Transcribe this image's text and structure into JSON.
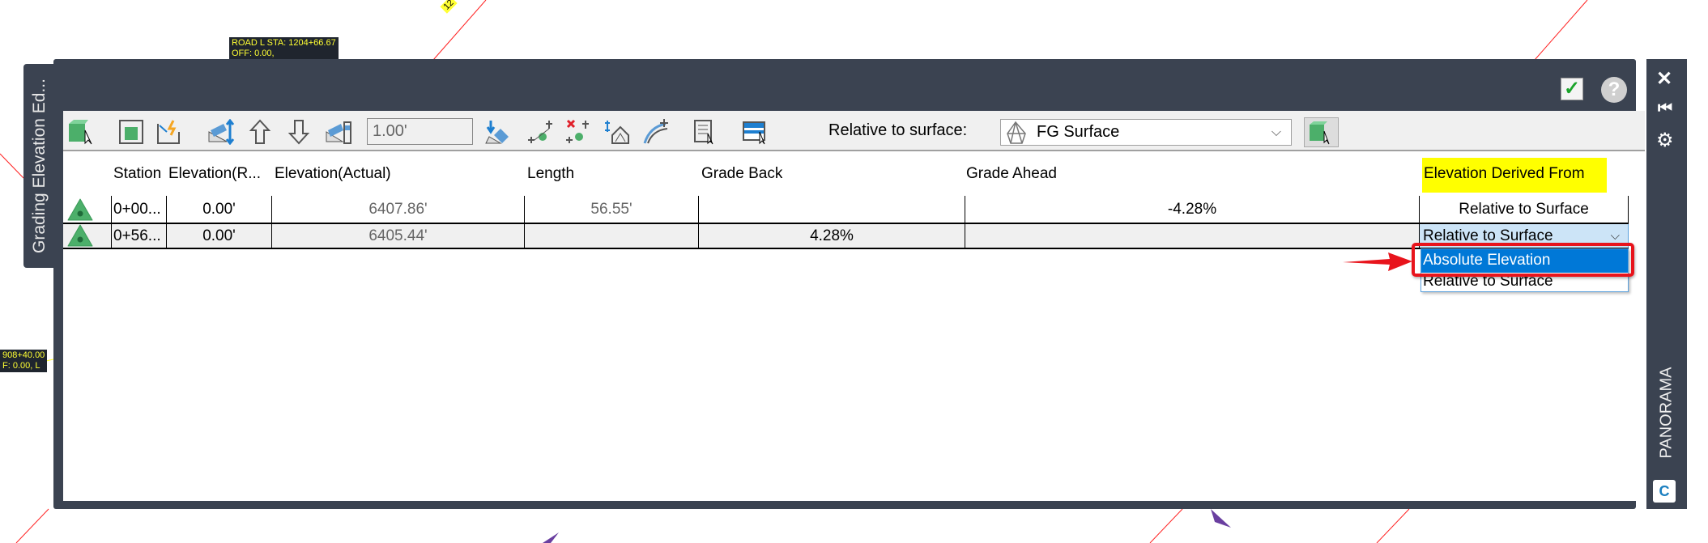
{
  "canvas": {
    "label_top": [
      "ROAD L STA: 1204+66.67",
      "OFF: 0.00,"
    ],
    "label_left": [
      "908+40.00",
      "F: 0.00, L"
    ],
    "label_rotated": "12"
  },
  "panel": {
    "title": "Grading Elevation Ed...",
    "side_title": "PANORAMA",
    "logo": "C3D"
  },
  "toolbar": {
    "offset_value": "1.00'",
    "surface_label": "Relative to surface:",
    "surface_value": "FG Surface"
  },
  "grid": {
    "columns": [
      "Station",
      "Elevation(R...",
      "Elevation(Actual)",
      "Length",
      "Grade Back",
      "Grade Ahead",
      "Elevation Derived From"
    ],
    "rows": [
      {
        "station": "0+00...",
        "elev_rel": "0.00'",
        "elev_actual": "6407.86'",
        "length": "56.55'",
        "grade_back": "",
        "grade_ahead": "-4.28%",
        "derived": "Relative to Surface"
      },
      {
        "station": "0+56...",
        "elev_rel": "0.00'",
        "elev_actual": "6405.44'",
        "length": "",
        "grade_back": "4.28%",
        "grade_ahead": "",
        "derived": "Relative to Surface"
      }
    ],
    "dropdown_options": [
      "Absolute Elevation",
      "Relative to Surface"
    ]
  },
  "colors": {
    "panel": "#3b4351",
    "highlight_header": "#ffff00",
    "selected_option": "#0078d7",
    "annotation": "#e8141c",
    "point_icon": "#4caf6a"
  }
}
